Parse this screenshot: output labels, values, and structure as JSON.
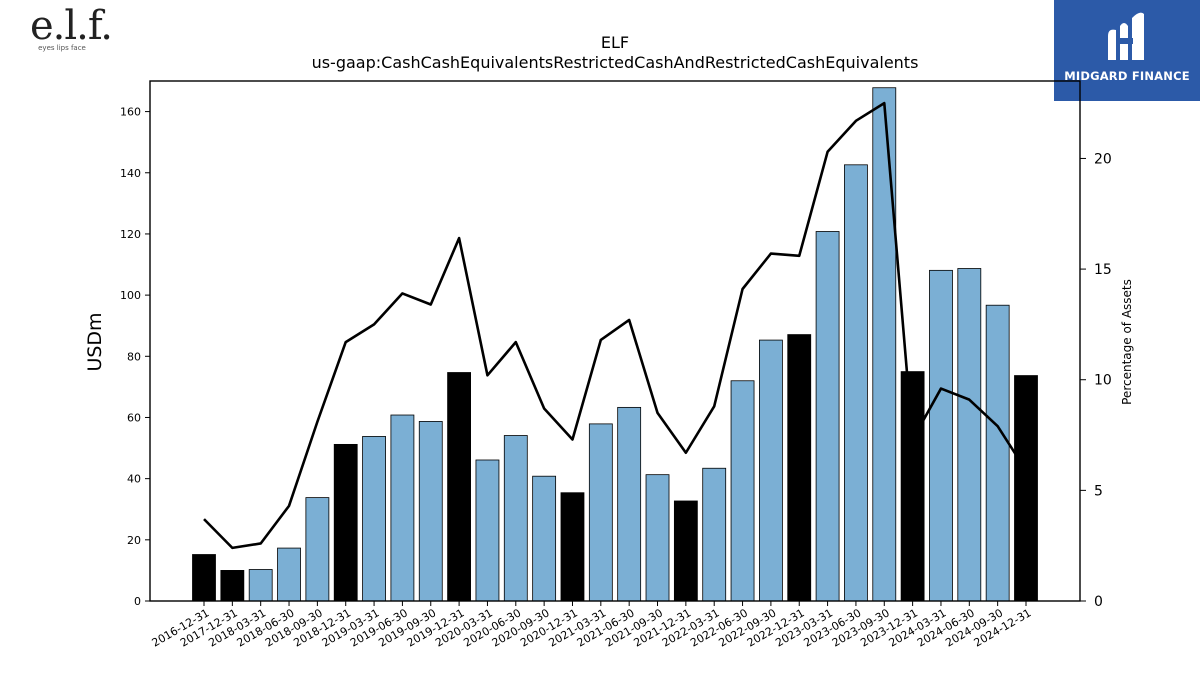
{
  "logos": {
    "company_text": "e.l.f.",
    "company_tagline": "eyes lips face",
    "brand_text": "MIDGARD FINANCE"
  },
  "colors": {
    "bar_normal": "#7bafd4",
    "bar_year_end": "#000000",
    "line": "#000000",
    "brand_bg": "#2c5aa8"
  },
  "chart_data": {
    "type": "bar",
    "title": "ELF",
    "subtitle": "us-gaap:CashCashEquivalentsRestrictedCashAndRestrictedCashEquivalents",
    "ylabel": "USDm",
    "y2label": "Percentage of Assets",
    "ylim": [
      0,
      170
    ],
    "y2lim": [
      0,
      23.5
    ],
    "yticks": [
      0,
      20,
      40,
      60,
      80,
      100,
      120,
      140,
      160
    ],
    "y2ticks": [
      0,
      5,
      10,
      15,
      20
    ],
    "categories": [
      "2016-12-31",
      "2017-12-31",
      "2018-03-31",
      "2018-06-30",
      "2018-09-30",
      "2018-12-31",
      "2019-03-31",
      "2019-06-30",
      "2019-09-30",
      "2019-12-31",
      "2020-03-31",
      "2020-06-30",
      "2020-09-30",
      "2020-12-31",
      "2021-03-31",
      "2021-06-30",
      "2021-09-30",
      "2021-12-31",
      "2022-03-31",
      "2022-06-30",
      "2022-09-30",
      "2022-12-31",
      "2023-03-31",
      "2023-06-30",
      "2023-09-30",
      "2023-12-31",
      "2024-03-31",
      "2024-06-30",
      "2024-09-30",
      "2024-12-31"
    ],
    "series": [
      {
        "kind": "bar",
        "values": [
          15.2,
          10.0,
          10.3,
          17.3,
          33.8,
          51.2,
          53.8,
          60.8,
          58.7,
          74.7,
          46.1,
          54.1,
          40.8,
          35.4,
          57.9,
          63.3,
          41.3,
          32.7,
          43.4,
          72.0,
          85.3,
          87.1,
          120.8,
          142.6,
          167.8,
          75.0,
          108.1,
          108.7,
          96.7,
          73.7
        ],
        "highlight": [
          true,
          true,
          false,
          false,
          false,
          true,
          false,
          false,
          false,
          true,
          false,
          false,
          false,
          true,
          false,
          false,
          false,
          true,
          false,
          false,
          false,
          true,
          false,
          false,
          false,
          true,
          false,
          false,
          false,
          true
        ]
      },
      {
        "kind": "line",
        "axis": "right",
        "values": [
          3.7,
          2.4,
          2.6,
          4.3,
          8.1,
          11.7,
          12.5,
          13.9,
          13.4,
          16.4,
          10.2,
          11.7,
          8.7,
          7.3,
          11.8,
          12.7,
          8.5,
          6.7,
          8.8,
          14.1,
          15.7,
          15.6,
          20.3,
          21.7,
          22.5,
          7.3,
          9.6,
          9.1,
          7.9,
          5.9
        ]
      }
    ],
    "grid": false
  }
}
